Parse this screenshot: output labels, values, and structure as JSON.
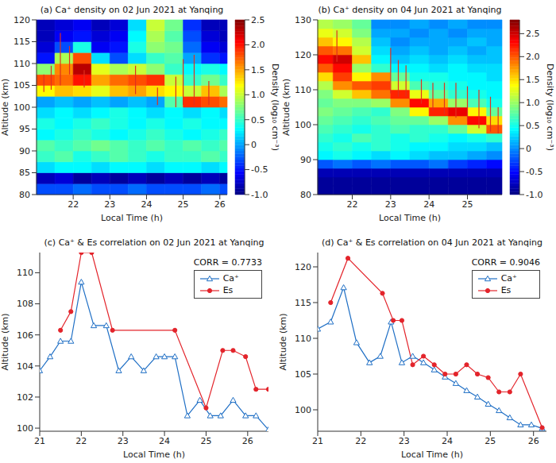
{
  "chart_data": [
    {
      "type": "heatmap",
      "title": "(a) Ca⁺ density on 02 Jun 2021 at Yanqing",
      "x_label": "Local Time (h)",
      "y_label": "Altitude (km)",
      "xlim": [
        21.0,
        26.2
      ],
      "xticks": [
        22,
        23,
        24,
        25,
        26
      ],
      "ylim": [
        80,
        120
      ],
      "yticks": [
        80,
        85,
        90,
        95,
        100,
        105,
        110,
        115,
        120
      ],
      "x_edges": [
        21.0,
        21.5,
        22.0,
        22.5,
        23.0,
        23.5,
        24.0,
        24.5,
        25.0,
        25.5,
        26.0,
        26.2
      ],
      "y_edges": [
        80,
        82.5,
        85,
        87.5,
        90,
        92.5,
        95,
        97.5,
        100,
        102.5,
        105,
        107.5,
        110,
        112.5,
        115,
        117.5,
        120
      ],
      "cells": [
        [
          -0.3,
          -0.3,
          -0.2,
          -0.3,
          -0.3,
          -0.2,
          -0.3,
          -0.3,
          -0.3,
          -0.2,
          -0.3
        ],
        [
          -0.8,
          -0.7,
          -0.9,
          -0.8,
          -0.9,
          -0.8,
          -0.9,
          -0.8,
          -0.9,
          -0.8,
          -0.9
        ],
        [
          0.2,
          0.3,
          0.3,
          0.2,
          0.3,
          0.3,
          0.2,
          0.3,
          0.3,
          0.2,
          0.3
        ],
        [
          0.5,
          0.6,
          0.4,
          0.5,
          0.6,
          0.5,
          0.4,
          0.5,
          0.5,
          0.6,
          0.5
        ],
        [
          0.6,
          0.5,
          0.6,
          0.7,
          0.6,
          0.5,
          0.6,
          0.5,
          0.6,
          0.5,
          0.6
        ],
        [
          0.3,
          0.4,
          0.5,
          0.4,
          0.3,
          0.4,
          0.5,
          0.4,
          0.3,
          0.4,
          0.5
        ],
        [
          0.4,
          0.3,
          0.4,
          0.5,
          0.4,
          0.3,
          0.4,
          0.3,
          0.4,
          0.3,
          0.3
        ],
        [
          0.2,
          0.3,
          0.2,
          0.3,
          0.4,
          0.3,
          0.2,
          0.3,
          0.2,
          0.3,
          0.2
        ],
        [
          0.0,
          0.1,
          0.0,
          0.1,
          0.0,
          0.1,
          0.0,
          0.6,
          1.9,
          1.8,
          1.7
        ],
        [
          1.2,
          1.4,
          1.3,
          1.1,
          1.4,
          1.5,
          1.3,
          1.2,
          1.0,
          1.4,
          0.9
        ],
        [
          1.8,
          1.7,
          2.0,
          1.5,
          1.7,
          1.8,
          1.9,
          1.0,
          0.5,
          0.7,
          0.5
        ],
        [
          0.8,
          1.6,
          2.3,
          1.1,
          0.9,
          1.0,
          0.8,
          0.5,
          0.3,
          0.4,
          0.3
        ],
        [
          -0.5,
          0.9,
          1.8,
          0.2,
          -0.3,
          0.2,
          0.5,
          0.6,
          0.0,
          -0.4,
          -0.5
        ],
        [
          -0.7,
          -0.3,
          0.4,
          -0.6,
          -0.5,
          0.4,
          0.8,
          0.7,
          -0.2,
          -0.6,
          -0.7
        ],
        [
          -0.8,
          -0.6,
          -0.5,
          -0.7,
          -0.6,
          0.3,
          0.9,
          0.6,
          -0.3,
          -0.7,
          -0.8
        ],
        [
          -0.8,
          -0.7,
          -0.6,
          -0.8,
          -0.7,
          0.2,
          1.0,
          0.7,
          -0.4,
          -0.8,
          -0.8
        ]
      ],
      "colorbar": {
        "label": "Density (log₁₀ cm⁻³)",
        "range": [
          -1.0,
          2.5
        ],
        "ticks": [
          {
            "value": -1,
            "label": "-1.0"
          },
          -0.5,
          0,
          0.5,
          {
            "value": 1,
            "label": "1.0"
          },
          1.5,
          {
            "value": 2,
            "label": "2.0"
          },
          2.5
        ]
      },
      "es_bars": {
        "color": "#e0301e",
        "x": [
          21.2,
          21.4,
          21.65,
          21.9,
          22.3,
          23.7,
          24.3,
          24.8,
          25.0,
          25.3,
          25.7
        ],
        "low": [
          103.5,
          104,
          105,
          107.5,
          104.5,
          103,
          100.5,
          100,
          100.5,
          100.5,
          100.5
        ],
        "high": [
          107.5,
          109.5,
          117,
          114,
          108.5,
          109.5,
          104.5,
          107,
          111,
          112,
          106
        ]
      }
    },
    {
      "type": "heatmap",
      "title": "(b) Ca⁺ density on 04 Jun 2021 at Yanqing",
      "x_label": "Local Time (h)",
      "y_label": "Altitude (km)",
      "xlim": [
        21.1,
        25.9
      ],
      "xticks": [
        22,
        23,
        24,
        25
      ],
      "ylim": [
        80,
        130
      ],
      "yticks": [
        80,
        90,
        100,
        110,
        120,
        130
      ],
      "x_edges": [
        21.1,
        21.5,
        22.0,
        22.5,
        23.0,
        23.5,
        24.0,
        24.5,
        25.0,
        25.5,
        25.9
      ],
      "y_edges": [
        80,
        82.5,
        85,
        87.5,
        90,
        92.5,
        95,
        97.5,
        100,
        102.5,
        105,
        107.5,
        110,
        112.5,
        115,
        117.5,
        120,
        122.5,
        125,
        127.5,
        130
      ],
      "cells": [
        [
          -0.9,
          -0.9,
          -0.9,
          -0.9,
          -0.9,
          -0.9,
          -0.9,
          -0.9,
          -0.9,
          -0.9
        ],
        [
          -0.9,
          -0.9,
          -0.9,
          -0.9,
          -0.9,
          -0.9,
          -0.9,
          -0.9,
          -0.9,
          -0.9
        ],
        [
          -0.8,
          -0.8,
          -0.8,
          -0.8,
          -0.8,
          -0.8,
          -0.8,
          -0.8,
          -0.8,
          -0.8
        ],
        [
          -0.2,
          -0.1,
          -0.2,
          -0.1,
          -0.2,
          -0.2,
          -0.1,
          -0.3,
          -0.4,
          -0.5
        ],
        [
          0.4,
          0.5,
          0.4,
          0.3,
          0.4,
          0.3,
          0.2,
          0.2,
          0.1,
          0.0
        ],
        [
          0.5,
          0.6,
          0.5,
          0.6,
          0.5,
          0.4,
          0.4,
          0.3,
          0.3,
          0.2
        ],
        [
          0.6,
          0.5,
          0.7,
          0.6,
          0.5,
          0.6,
          0.5,
          0.4,
          0.5,
          0.6
        ],
        [
          0.7,
          0.6,
          0.5,
          0.6,
          0.7,
          0.6,
          0.6,
          0.8,
          1.2,
          2.0
        ],
        [
          0.8,
          0.7,
          0.6,
          0.7,
          0.8,
          0.8,
          1.0,
          1.8,
          2.3,
          1.5
        ],
        [
          0.9,
          0.8,
          0.7,
          0.6,
          0.9,
          1.4,
          2.2,
          2.4,
          1.4,
          0.8
        ],
        [
          0.8,
          0.9,
          0.9,
          1.0,
          1.8,
          2.3,
          1.7,
          1.0,
          0.7,
          0.5
        ],
        [
          0.9,
          1.2,
          1.6,
          1.9,
          2.2,
          1.3,
          0.8,
          0.6,
          0.5,
          0.4
        ],
        [
          1.1,
          1.8,
          2.0,
          2.1,
          1.2,
          0.7,
          0.6,
          0.5,
          0.4,
          0.4
        ],
        [
          1.5,
          2.1,
          1.4,
          1.8,
          0.8,
          0.5,
          0.5,
          0.4,
          0.4,
          0.3
        ],
        [
          2.0,
          2.3,
          1.0,
          0.6,
          0.4,
          0.4,
          0.3,
          0.4,
          0.3,
          0.3
        ],
        [
          2.3,
          2.5,
          1.6,
          0.4,
          0.2,
          0.3,
          0.2,
          0.3,
          0.2,
          0.2
        ],
        [
          2.0,
          1.9,
          1.2,
          0.3,
          0.1,
          0.2,
          0.1,
          0.2,
          0.1,
          0.2
        ],
        [
          1.6,
          1.4,
          1.1,
          0.2,
          0.0,
          0.1,
          0.1,
          0.1,
          0.2,
          0.1
        ],
        [
          1.3,
          1.2,
          0.9,
          0.1,
          0.1,
          0.0,
          0.1,
          0.0,
          0.1,
          0.1
        ],
        [
          1.1,
          1.0,
          0.8,
          0.0,
          0.0,
          0.1,
          0.0,
          0.1,
          0.0,
          0.0
        ]
      ],
      "colorbar": {
        "label": "Density (log₁₀ cm⁻³)",
        "range": [
          -1.0,
          2.8
        ],
        "ticks": [
          {
            "value": -1,
            "label": "-1.0"
          },
          -0.5,
          0,
          0.5,
          {
            "value": 1,
            "label": "1.0"
          },
          1.5,
          {
            "value": 2,
            "label": "2.0"
          },
          2.5
        ]
      },
      "es_bars": {
        "color": "#e0301e",
        "x": [
          21.6,
          23.0,
          23.2,
          23.4,
          23.8,
          24.1,
          24.4,
          24.7,
          25.0,
          25.3,
          25.6,
          25.8
        ],
        "low": [
          118,
          109,
          108,
          108,
          106,
          104,
          103,
          102,
          101,
          99,
          98,
          97.5
        ],
        "high": [
          127,
          122,
          118.5,
          117,
          113,
          112,
          112,
          112,
          111,
          110,
          108,
          105
        ]
      }
    },
    {
      "type": "line",
      "title": "(c) Ca⁺ & Es correlation on 02 Jun 2021 at Yanqing",
      "x_label": "Local Time (h)",
      "y_label": "Altitude (km)",
      "xlim": [
        21,
        26.5
      ],
      "xticks": [
        21,
        22,
        23,
        24,
        25,
        26
      ],
      "ylim": [
        99.8,
        111.3
      ],
      "yticks": [
        100,
        102,
        104,
        106,
        108,
        110
      ],
      "annotation": "CORR = 0.7733",
      "legend": "upper right",
      "series": [
        {
          "name": "Ca⁺",
          "color": "#1f6fc5",
          "marker": "triangle",
          "x": [
            21,
            21.25,
            21.5,
            21.75,
            22,
            22.3,
            22.6,
            22.9,
            23.2,
            23.5,
            23.8,
            24.0,
            24.25,
            24.55,
            24.85,
            25.1,
            25.35,
            25.65,
            25.95,
            26.2,
            26.5
          ],
          "values": [
            103.7,
            104.6,
            105.6,
            105.6,
            109.4,
            106.6,
            106.6,
            103.7,
            104.6,
            103.7,
            104.6,
            104.6,
            104.6,
            100.8,
            101.8,
            100.8,
            100.8,
            101.8,
            100.8,
            100.8,
            99.9
          ]
        },
        {
          "name": "Es",
          "color": "#e3242b",
          "marker": "circle",
          "x": [
            21.5,
            21.75,
            22,
            22.25,
            22.75,
            24.25,
            25,
            25.4,
            25.65,
            25.95,
            26.2,
            26.5
          ],
          "values": [
            106.3,
            107.5,
            111.3,
            111.3,
            106.3,
            106.3,
            101.3,
            105,
            105,
            104.6,
            102.5,
            102.5
          ]
        }
      ]
    },
    {
      "type": "line",
      "title": "(d) Ca⁺ & Es correlation on 04 Jun 2021 at Yanqing",
      "x_label": "Local Time (h)",
      "y_label": "Altitude (km)",
      "xlim": [
        21,
        26.3
      ],
      "xticks": [
        21,
        22,
        23,
        24,
        25,
        26
      ],
      "ylim": [
        97,
        122
      ],
      "yticks": [
        100,
        105,
        110,
        115,
        120
      ],
      "annotation": "CORR = 0.9046",
      "legend": "upper right",
      "series": [
        {
          "name": "Ca⁺",
          "color": "#1f6fc5",
          "marker": "triangle",
          "x": [
            21,
            21.3,
            21.6,
            21.9,
            22.2,
            22.45,
            22.7,
            22.95,
            23.2,
            23.45,
            23.7,
            23.95,
            24.2,
            24.45,
            24.7,
            24.95,
            25.2,
            25.45,
            25.7,
            25.95,
            26.2
          ],
          "values": [
            111.3,
            112.3,
            117.1,
            109.4,
            106.6,
            107.5,
            112.3,
            106.6,
            107.5,
            106.6,
            105.6,
            104.6,
            103.7,
            102.7,
            101.8,
            100.8,
            99.9,
            98.9,
            97.9,
            97.9,
            97.4
          ]
        },
        {
          "name": "Es",
          "color": "#e3242b",
          "marker": "circle",
          "x": [
            21.3,
            21.7,
            22.5,
            22.75,
            22.95,
            23.2,
            23.45,
            23.7,
            23.95,
            24.2,
            24.45,
            24.7,
            24.95,
            25.2,
            25.45,
            25.7,
            26.2
          ],
          "values": [
            115,
            121.2,
            116.3,
            112.5,
            112.5,
            106.3,
            107.5,
            106.3,
            105,
            105,
            106.3,
            105,
            104.5,
            102.5,
            102.5,
            105,
            97.5
          ]
        }
      ]
    }
  ]
}
